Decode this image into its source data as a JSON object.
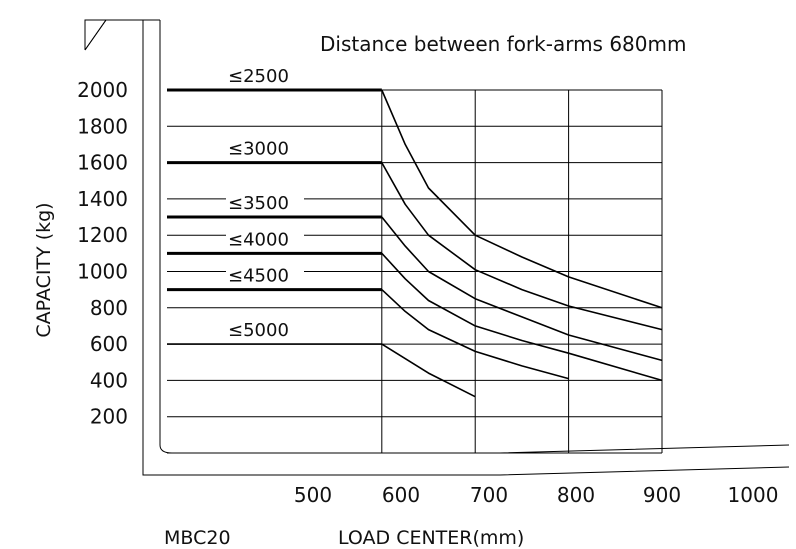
{
  "chart_data": {
    "type": "line",
    "title": "Distance between fork-arms 680mm",
    "model": "MBC20",
    "xlabel": "LOAD CENTER(mm)",
    "ylabel": "CAPACITY (kg)",
    "x_ticks": [
      "500",
      "600",
      "700",
      "800",
      "900",
      "1000"
    ],
    "y_ticks": [
      "2000",
      "1800",
      "1600",
      "1400",
      "1200",
      "1000",
      "800",
      "600",
      "400",
      "200"
    ],
    "xlim": [
      370,
      900
    ],
    "ylim": [
      0,
      2000
    ],
    "grid": true,
    "series": [
      {
        "name": "≤2500",
        "x": [
          370,
          600,
          625,
          650,
          700,
          750,
          800,
          900
        ],
        "y": [
          2000,
          2000,
          1700,
          1460,
          1200,
          1080,
          970,
          800
        ]
      },
      {
        "name": "≤3000",
        "x": [
          370,
          600,
          625,
          650,
          700,
          750,
          800,
          900
        ],
        "y": [
          1600,
          1600,
          1370,
          1200,
          1010,
          900,
          810,
          680
        ]
      },
      {
        "name": "≤3500",
        "x": [
          370,
          600,
          625,
          650,
          700,
          750,
          800,
          900
        ],
        "y": [
          1300,
          1300,
          1140,
          1000,
          850,
          750,
          650,
          510
        ]
      },
      {
        "name": "≤4000",
        "x": [
          370,
          600,
          625,
          650,
          700,
          750,
          800,
          900
        ],
        "y": [
          1100,
          1100,
          960,
          840,
          700,
          620,
          550,
          400
        ]
      },
      {
        "name": "≤4500",
        "x": [
          370,
          600,
          625,
          650,
          700,
          750,
          800
        ],
        "y": [
          900,
          900,
          780,
          680,
          560,
          480,
          410
        ]
      },
      {
        "name": "≤5000",
        "x": [
          370,
          600,
          650,
          700
        ],
        "y": [
          600,
          600,
          440,
          310
        ]
      }
    ]
  }
}
